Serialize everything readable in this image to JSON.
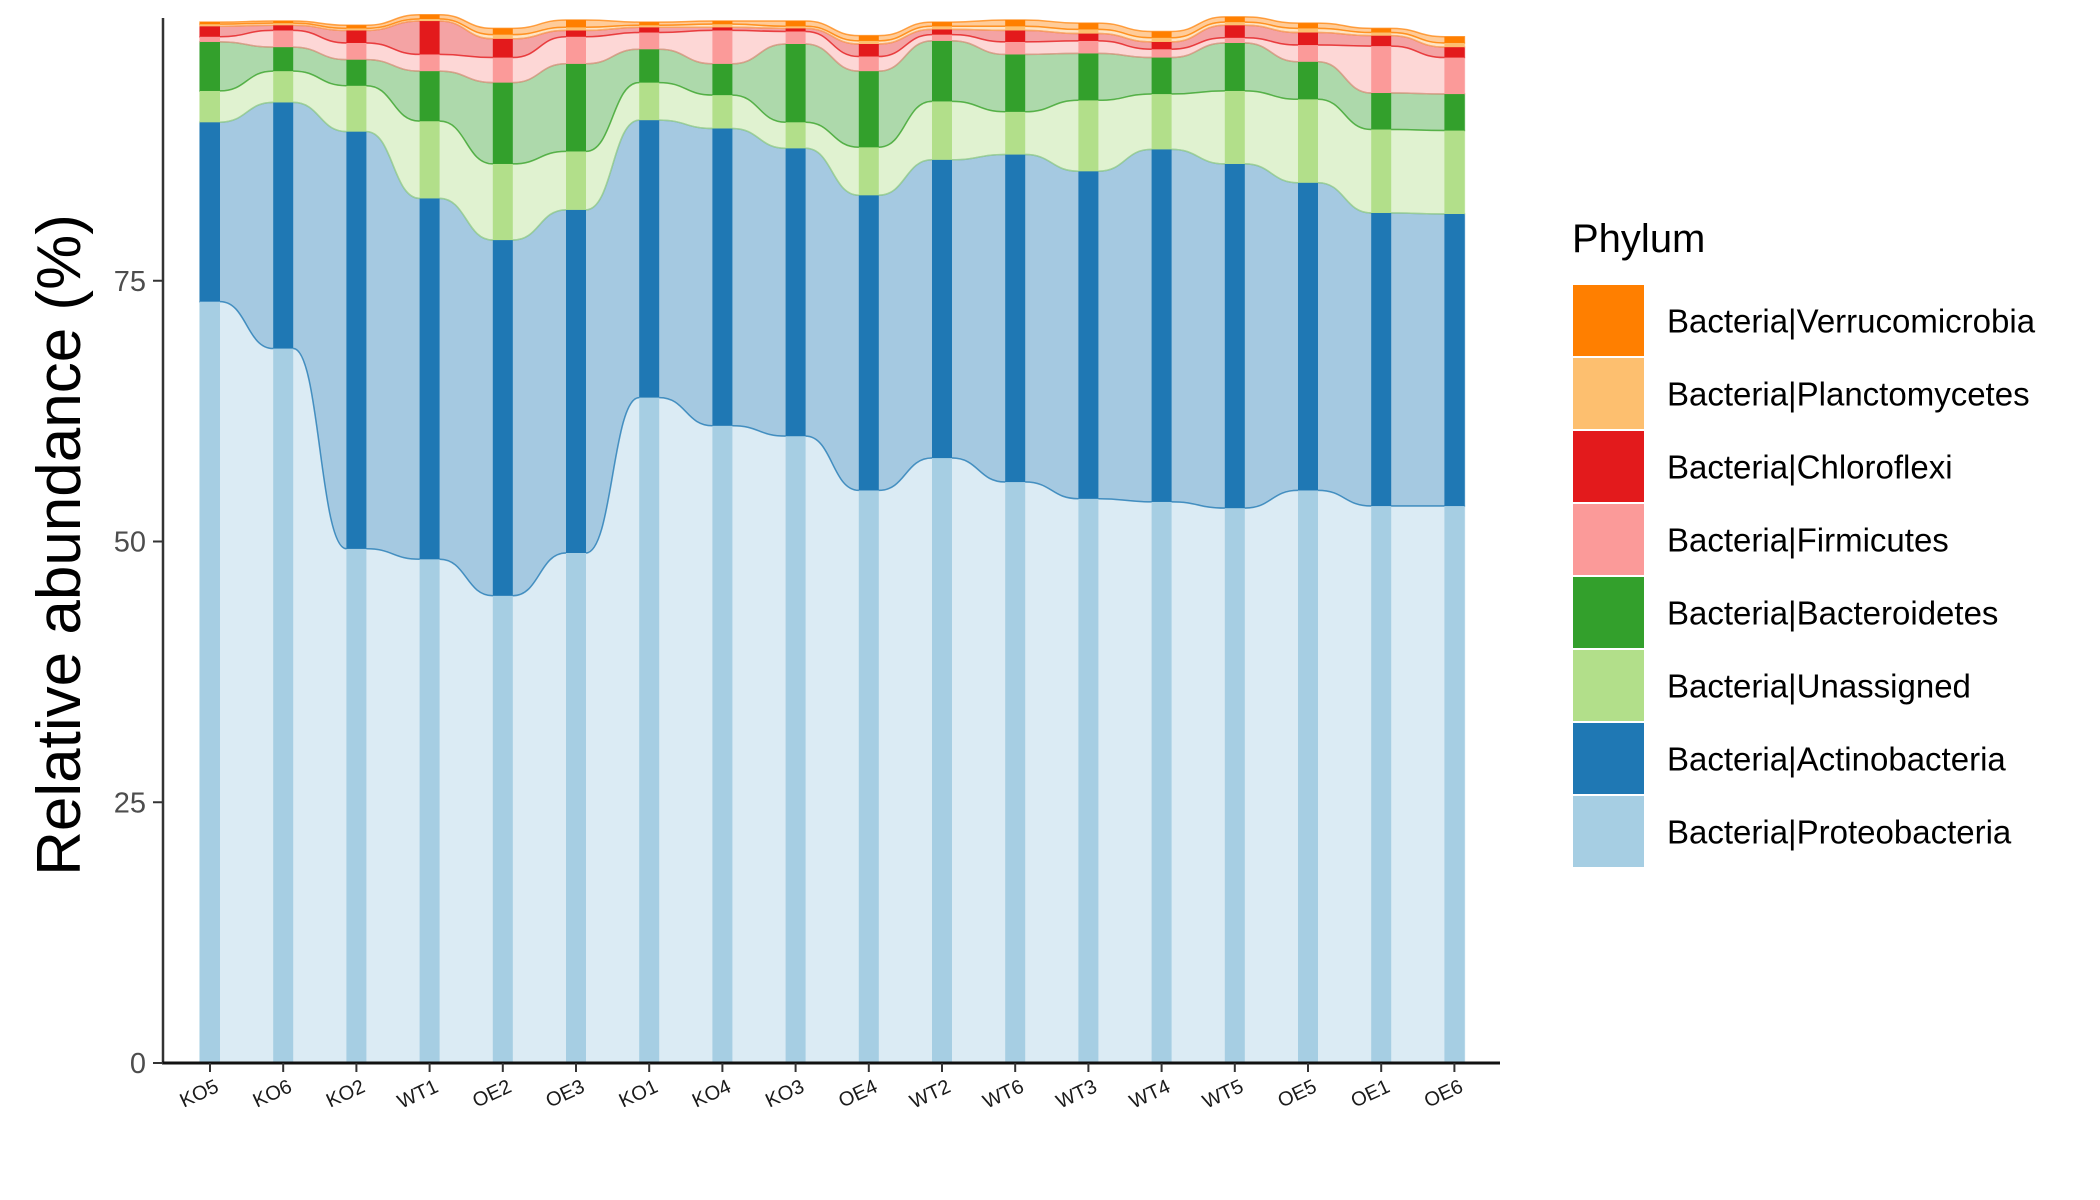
{
  "chart_data": {
    "type": "bar",
    "stacked": true,
    "xlabel": "",
    "ylabel": "Relative abundance (%)",
    "ylim": [
      0,
      100
    ],
    "yticks": [
      0,
      25,
      50,
      75
    ],
    "legend": {
      "title": "Phylum",
      "placement": "right"
    },
    "categories": [
      "KO5",
      "KO6",
      "KO2",
      "WT1",
      "OE2",
      "OE3",
      "KO1",
      "KO4",
      "KO3",
      "OE4",
      "WT2",
      "WT6",
      "WT3",
      "WT4",
      "WT5",
      "OE5",
      "OE1",
      "OE6"
    ],
    "series": [
      {
        "name": "Bacteria|Proteobacteria",
        "color": "#A6CEE3",
        "values": [
          73.0,
          68.5,
          49.3,
          48.3,
          44.8,
          48.9,
          63.8,
          61.1,
          60.1,
          54.9,
          58.0,
          55.7,
          54.1,
          53.8,
          53.2,
          54.9,
          53.4,
          53.4
        ]
      },
      {
        "name": "Bacteria|Actinobacteria",
        "color": "#1F78B4",
        "values": [
          17.2,
          23.6,
          40.0,
          34.6,
          34.1,
          32.9,
          26.6,
          28.5,
          27.6,
          28.3,
          28.6,
          31.4,
          31.4,
          33.8,
          33.0,
          29.5,
          28.1,
          28.0
        ]
      },
      {
        "name": "Bacteria|Unassigned",
        "color": "#B2DF8A",
        "values": [
          3.0,
          3.0,
          4.4,
          7.4,
          7.3,
          5.6,
          3.6,
          3.2,
          2.5,
          4.6,
          5.6,
          4.1,
          6.8,
          5.3,
          7.0,
          8.0,
          8.0,
          8.0
        ]
      },
      {
        "name": "Bacteria|Bacteroidetes",
        "color": "#33A02C",
        "values": [
          4.7,
          2.3,
          2.5,
          4.8,
          7.8,
          8.4,
          3.2,
          3.0,
          7.5,
          7.3,
          5.8,
          5.5,
          4.5,
          3.5,
          4.6,
          3.6,
          3.5,
          3.5
        ]
      },
      {
        "name": "Bacteria|Firmicutes",
        "color": "#FB9A99",
        "values": [
          0.5,
          1.6,
          1.6,
          1.6,
          2.4,
          2.6,
          1.6,
          3.2,
          1.2,
          1.4,
          0.6,
          1.2,
          1.2,
          0.8,
          0.5,
          1.6,
          4.5,
          3.5
        ]
      },
      {
        "name": "Bacteria|Chloroflexi",
        "color": "#E31A1C",
        "values": [
          1.0,
          0.5,
          1.2,
          3.2,
          1.8,
          0.6,
          0.5,
          0.3,
          0.3,
          1.2,
          0.5,
          1.1,
          0.7,
          0.7,
          1.2,
          1.2,
          1.0,
          1.0
        ]
      },
      {
        "name": "Bacteria|Planctomycetes",
        "color": "#FDBF6F",
        "values": [
          0.2,
          0.2,
          0.2,
          0.2,
          0.4,
          0.3,
          0.2,
          0.3,
          0.2,
          0.3,
          0.3,
          0.4,
          0.4,
          0.4,
          0.3,
          0.4,
          0.3,
          0.4
        ]
      },
      {
        "name": "Bacteria|Verrucomicrobia",
        "color": "#FF7F00",
        "values": [
          0.2,
          0.2,
          0.3,
          0.4,
          0.6,
          0.7,
          0.3,
          0.3,
          0.5,
          0.5,
          0.4,
          0.6,
          0.6,
          0.6,
          0.5,
          0.5,
          0.4,
          0.6
        ]
      }
    ]
  }
}
